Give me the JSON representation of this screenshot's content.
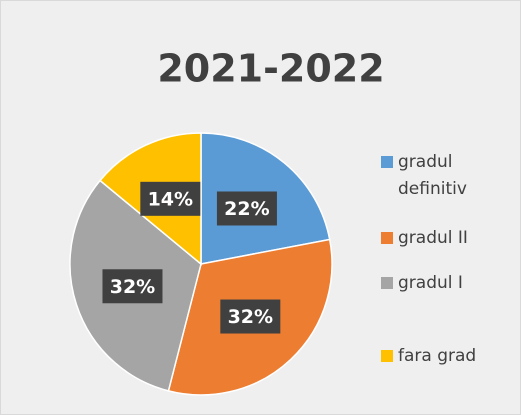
{
  "chart_data": {
    "type": "pie",
    "title": "2021-2022",
    "categories": [
      "gradul definitiv",
      "gradul II",
      "gradul I",
      "fara grad"
    ],
    "values": [
      22,
      32,
      32,
      14
    ],
    "value_labels": [
      "22%",
      "32%",
      "32%",
      "14%"
    ],
    "colors": [
      "#5b9bd5",
      "#ed7d31",
      "#a5a5a5",
      "#ffc000"
    ]
  }
}
